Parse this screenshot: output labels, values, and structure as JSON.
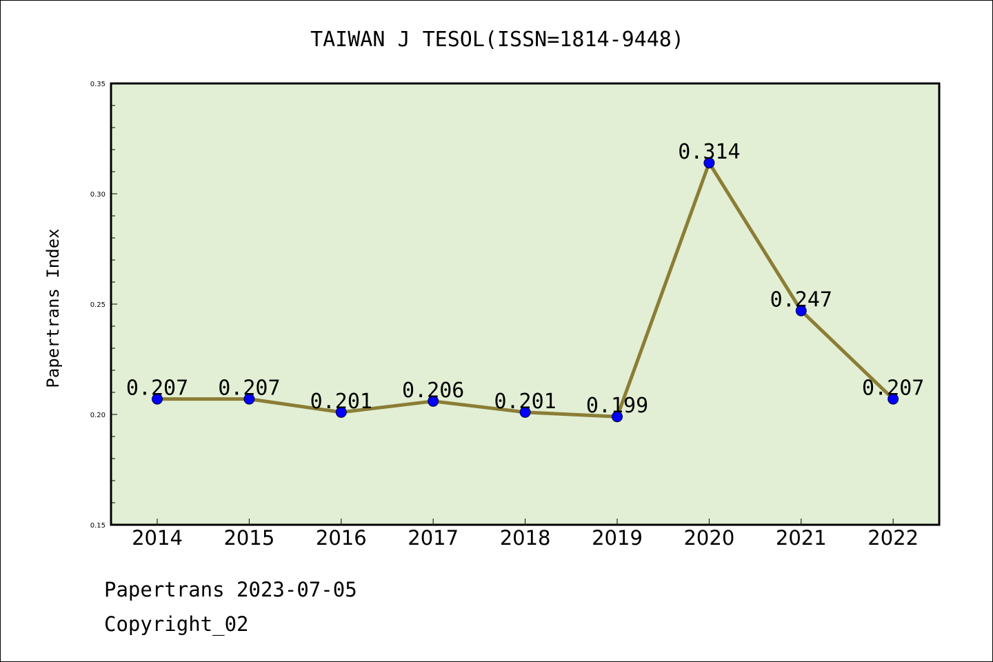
{
  "chart_data": {
    "type": "line",
    "title": "TAIWAN J TESOL(ISSN=1814-9448)",
    "xlabel": "",
    "ylabel": "Papertrans Index",
    "categories": [
      "2014",
      "2015",
      "2016",
      "2017",
      "2018",
      "2019",
      "2020",
      "2021",
      "2022"
    ],
    "series": [
      {
        "values": [
          0.207,
          0.207,
          0.201,
          0.206,
          0.201,
          0.199,
          0.314,
          0.247,
          0.207
        ],
        "labels": [
          "0.207",
          "0.207",
          "0.201",
          "0.206",
          "0.201",
          "0.199",
          "0.314",
          "0.247",
          "0.207"
        ],
        "line_color": "#8b7d35",
        "marker_color": "#0000ff"
      }
    ],
    "ylim": [
      0.15,
      0.35
    ],
    "yticks": [
      0.15,
      0.2,
      0.25,
      0.3,
      0.35
    ],
    "ytick_labels": [
      "0.15",
      "0.20",
      "0.25",
      "0.30",
      "0.35"
    ],
    "plot_background": "#e2efd4",
    "grid": false,
    "legend": "none"
  },
  "footer": {
    "line1": "Papertrans 2023-07-05",
    "line2": "Copyright_02"
  }
}
